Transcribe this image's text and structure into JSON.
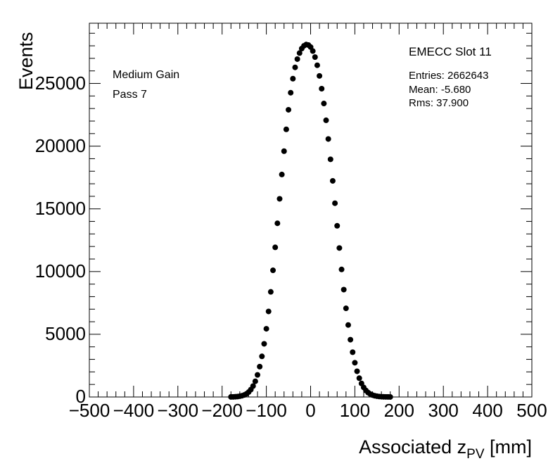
{
  "plot_label": "EMECC Slot 11",
  "annotations": {
    "line1": "Medium Gain",
    "line2": "Pass 7"
  },
  "stats": {
    "entries": "Entries: 2662643",
    "mean": "Mean: -5.680",
    "rms": "Rms: 37.900"
  },
  "axes": {
    "xlabel_main": "Associated z",
    "xlabel_sub": "PV",
    "xlabel_unit": " [mm]",
    "ylabel": "Events"
  },
  "chart_data": {
    "type": "scatter",
    "title": "EMECC Slot 11",
    "xlabel": "Associated z_PV [mm]",
    "ylabel": "Events",
    "xlim": [
      -500,
      500
    ],
    "ylim": [
      0,
      29800
    ],
    "x_ticks": [
      -500,
      -400,
      -300,
      -200,
      -100,
      0,
      100,
      200,
      300,
      400,
      500
    ],
    "x_tick_labels": [
      "−500",
      "−400",
      "−300",
      "−200",
      "−100",
      "0",
      "100",
      "200",
      "300",
      "400",
      "500"
    ],
    "y_ticks": [
      0,
      5000,
      10000,
      15000,
      20000,
      25000
    ],
    "y_tick_labels": [
      "0",
      "5000",
      "10000",
      "15000",
      "20000",
      "25000"
    ],
    "marker_color": "#000000",
    "grid": false,
    "legend": "none",
    "series": [
      {
        "x": [
          -180,
          -175,
          -170,
          -165,
          -160,
          -155,
          -150,
          -145,
          -140,
          -135,
          -130,
          -125,
          -120,
          -115,
          -110,
          -105,
          -100,
          -95,
          -90,
          -85,
          -80,
          -75,
          -70,
          -65,
          -60,
          -55,
          -50,
          -45,
          -40,
          -35,
          -30,
          -25,
          -20,
          -15,
          -10,
          -5,
          0,
          5,
          10,
          15,
          20,
          25,
          30,
          35,
          40,
          45,
          50,
          55,
          60,
          65,
          70,
          75,
          80,
          85,
          90,
          95,
          100,
          105,
          110,
          115,
          120,
          125,
          130,
          135,
          140,
          145,
          150,
          155,
          160,
          165,
          170,
          175,
          180
        ],
        "y": [
          5,
          10,
          20,
          35,
          60,
          100,
          160,
          250,
          390,
          590,
          870,
          1250,
          1760,
          2420,
          3240,
          4240,
          5440,
          6820,
          8380,
          10100,
          11930,
          13850,
          15800,
          17740,
          19600,
          21340,
          22900,
          24260,
          25380,
          26280,
          26940,
          27420,
          27780,
          28000,
          28100,
          28060,
          27900,
          27580,
          27100,
          26450,
          25600,
          24580,
          23400,
          22060,
          20570,
          18950,
          17230,
          15450,
          13650,
          11880,
          10170,
          8560,
          7070,
          5740,
          4570,
          3570,
          2730,
          2050,
          1500,
          1080,
          760,
          520,
          350,
          230,
          150,
          95,
          60,
          37,
          22,
          13,
          8,
          4,
          2
        ]
      }
    ]
  }
}
